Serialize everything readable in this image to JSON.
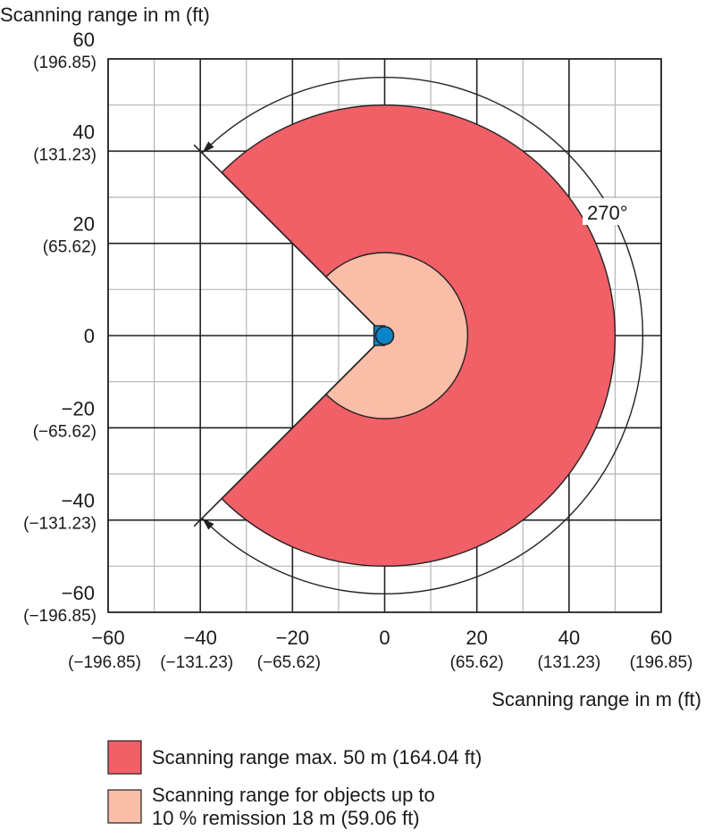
{
  "chart_data": {
    "type": "polar-range",
    "title": "Scanning range in m (ft)",
    "xlabel": "Scanning range in m (ft)",
    "xlim": [
      -60,
      60
    ],
    "ylim": [
      -60,
      60
    ],
    "grid": true,
    "grid_minor_step": 10,
    "grid_major_step": 20,
    "x_ticks": [
      {
        "value": -60,
        "label": "−60",
        "sub": "(−196.85)"
      },
      {
        "value": -40,
        "label": "−40",
        "sub": "(−131.23)"
      },
      {
        "value": -20,
        "label": "−20",
        "sub": "(−65.62)"
      },
      {
        "value": 0,
        "label": "0",
        "sub": ""
      },
      {
        "value": 20,
        "label": "20",
        "sub": "(65.62)"
      },
      {
        "value": 40,
        "label": "40",
        "sub": "(131.23)"
      },
      {
        "value": 60,
        "label": "60",
        "sub": "(196.85)"
      }
    ],
    "y_ticks": [
      {
        "value": 60,
        "label": "60",
        "sub": "(196.85)"
      },
      {
        "value": 40,
        "label": "40",
        "sub": "(131.23)"
      },
      {
        "value": 20,
        "label": "20",
        "sub": "(65.62)"
      },
      {
        "value": 0,
        "label": "0",
        "sub": ""
      },
      {
        "value": -20,
        "label": "−20",
        "sub": "(−65.62)"
      },
      {
        "value": -40,
        "label": "−40",
        "sub": "(−131.23)"
      },
      {
        "value": -60,
        "label": "−60",
        "sub": "(−196.85)"
      }
    ],
    "aperture_deg": 270,
    "aperture_label": "270°",
    "series": [
      {
        "name": "Scanning range max. 50 m (164.04 ft)",
        "radius": 50,
        "color": "#f15f67"
      },
      {
        "name": "Scanning range for objects up to 10 % remission 18 m (59.06 ft)",
        "radius": 18,
        "color": "#f9bda8"
      }
    ],
    "sensor_color": "#0a84c8",
    "legend": {
      "placement": "bottom",
      "items": [
        {
          "line1": "Scanning range max. 50 m (164.04 ft)",
          "line2": "",
          "color": "#f15f67"
        },
        {
          "line1": "Scanning range for objects up to",
          "line2": "10 % remission 18 m (59.06 ft)",
          "color": "#f9bda8"
        }
      ]
    }
  }
}
